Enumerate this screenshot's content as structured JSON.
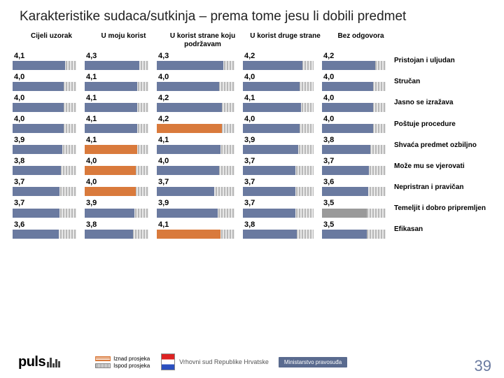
{
  "title": "Karakteristike sudaca/sutkinja – prema tome jesu li dobili predmet",
  "columns": [
    "Cijeli uzorak",
    "U moju korist",
    "U korist strane koju podržavam",
    "U korist druge strane",
    "Bez odgovora"
  ],
  "max_value": 5.0,
  "bar_color_default": "#6a7aa0",
  "bar_color_above": "#d97a3c",
  "bar_color_below": "#9a9a9a",
  "bar_bg_color": "#dcdcdc",
  "rows": [
    {
      "label": "Pristojan i uljudan",
      "vals": [
        4.1,
        4.3,
        4.3,
        4.2,
        4.2
      ],
      "flags": [
        "",
        "",
        "",
        "",
        ""
      ]
    },
    {
      "label": "Stručan",
      "vals": [
        4.0,
        4.1,
        4.0,
        4.0,
        4.0
      ],
      "flags": [
        "",
        "",
        "",
        "",
        ""
      ]
    },
    {
      "label": "Jasno se izražava",
      "vals": [
        4.0,
        4.1,
        4.2,
        4.1,
        4.0
      ],
      "flags": [
        "",
        "",
        "",
        "",
        ""
      ]
    },
    {
      "label": "Poštuje procedure",
      "vals": [
        4.0,
        4.1,
        4.2,
        4.0,
        4.0
      ],
      "flags": [
        "",
        "",
        "above",
        "",
        ""
      ]
    },
    {
      "label": "Shvaća predmet ozbiljno",
      "vals": [
        3.9,
        4.1,
        4.1,
        3.9,
        3.8
      ],
      "flags": [
        "",
        "above",
        "",
        "",
        ""
      ]
    },
    {
      "label": "Može mu se vjerovati",
      "vals": [
        3.8,
        4.0,
        4.0,
        3.7,
        3.7
      ],
      "flags": [
        "",
        "above",
        "",
        "",
        ""
      ]
    },
    {
      "label": "Nepristran i pravičan",
      "vals": [
        3.7,
        4.0,
        3.7,
        3.7,
        3.6
      ],
      "flags": [
        "",
        "above",
        "",
        "",
        ""
      ]
    },
    {
      "label": "Temeljit i dobro pripremljen",
      "vals": [
        3.7,
        3.9,
        3.9,
        3.7,
        3.5
      ],
      "flags": [
        "",
        "",
        "",
        "",
        "below"
      ]
    },
    {
      "label": "Efikasan",
      "vals": [
        3.6,
        3.8,
        4.1,
        3.8,
        3.5
      ],
      "flags": [
        "",
        "",
        "above",
        "",
        ""
      ]
    }
  ],
  "legend": {
    "above": "Iznad prosjeka",
    "below": "Ispod prosjeka"
  },
  "footer": {
    "brand": "puls",
    "court": "Vrhovni sud Republike Hrvatske",
    "ministry": "Ministarstvo pravosuđa"
  },
  "page_number": "39"
}
